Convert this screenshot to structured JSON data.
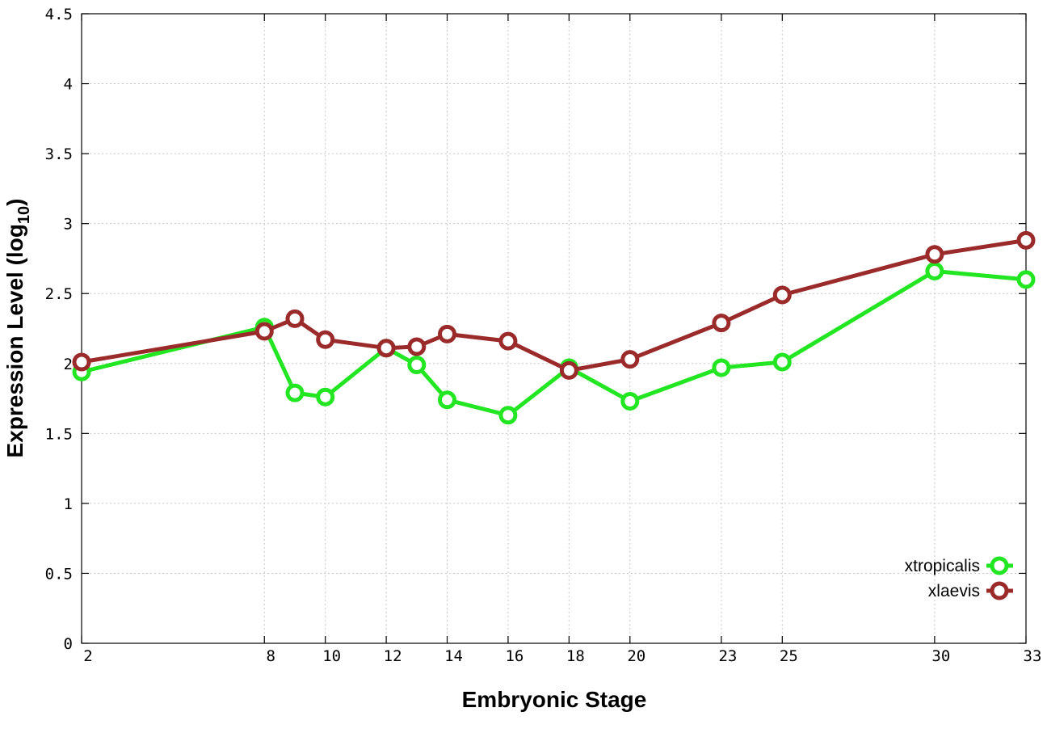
{
  "chart_data": {
    "type": "line",
    "title": "",
    "xlabel": "Embryonic Stage",
    "ylabel": "Expression Level (log",
    "ylabel_subscript": "10",
    "ylabel_suffix": ")",
    "x": [
      2,
      8,
      9,
      10,
      12,
      13,
      14,
      16,
      18,
      20,
      23,
      25,
      30,
      33
    ],
    "x_tick_values": [
      2,
      8,
      10,
      12,
      14,
      16,
      18,
      20,
      23,
      25,
      30,
      33
    ],
    "x_tick_labels": [
      "2",
      "8",
      "10",
      "12",
      "14",
      "16",
      "18",
      "20",
      "23",
      "25",
      "30",
      "33"
    ],
    "xlim": [
      2,
      33
    ],
    "ylim": [
      0,
      4.5
    ],
    "y_tick_values": [
      0,
      0.5,
      1,
      1.5,
      2,
      2.5,
      3,
      3.5,
      4,
      4.5
    ],
    "y_tick_labels": [
      "0",
      "0.5",
      "1",
      "1.5",
      "2",
      "2.5",
      "3",
      "3.5",
      "4",
      "4.5"
    ],
    "grid": true,
    "legend_position": "bottom-right",
    "series": [
      {
        "name": "xtropicalis",
        "color": "#22e622",
        "values": [
          1.94,
          2.26,
          1.79,
          1.76,
          2.11,
          1.99,
          1.74,
          1.63,
          1.97,
          1.73,
          1.97,
          2.01,
          2.66,
          2.6
        ]
      },
      {
        "name": "xlaevis",
        "color": "#9b2a2a",
        "values": [
          2.01,
          2.23,
          2.32,
          2.17,
          2.11,
          2.12,
          2.21,
          2.16,
          1.95,
          2.03,
          2.29,
          2.49,
          2.78,
          2.88
        ]
      }
    ]
  }
}
